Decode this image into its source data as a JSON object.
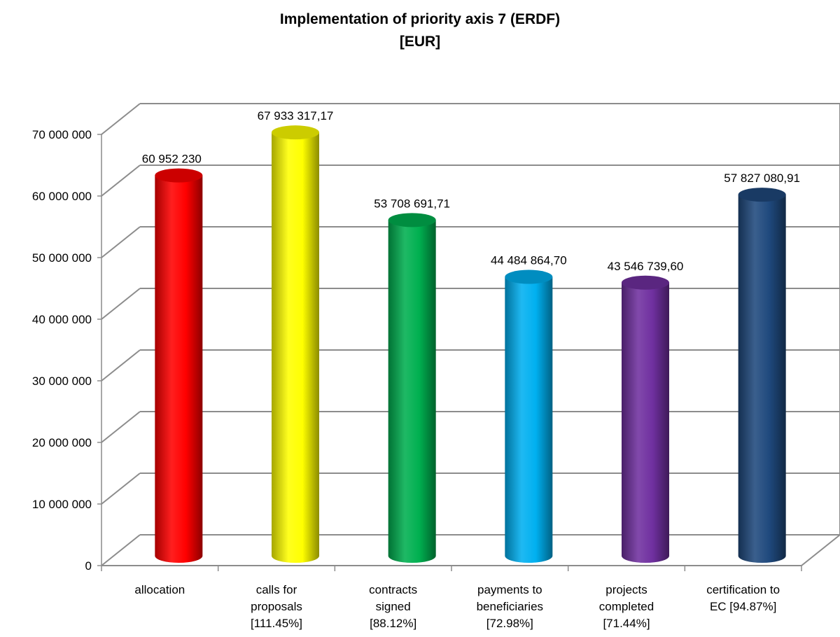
{
  "chart_data": {
    "type": "bar",
    "title_lines": [
      "Implementation of priority axis 7 (ERDF)",
      "[EUR]"
    ],
    "xlabel": "",
    "ylabel": "",
    "ylim": [
      0,
      70000000
    ],
    "yticks": [
      0,
      10000000,
      20000000,
      30000000,
      40000000,
      50000000,
      60000000,
      70000000
    ],
    "ytick_labels": [
      "0",
      "10 000 000",
      "20 000 000",
      "30 000 000",
      "40 000 000",
      "50 000 000",
      "60 000 000",
      "70 000 000"
    ],
    "grid": true,
    "legend": "none",
    "style": "3d-cylinder",
    "categories": [
      [
        "allocation"
      ],
      [
        "calls for",
        "proposals",
        "[111.45%]"
      ],
      [
        "contracts",
        "signed",
        "[88.12%]"
      ],
      [
        "payments to",
        "beneficiaries",
        "[72.98%]"
      ],
      [
        "projects",
        "completed",
        "[71.44%]"
      ],
      [
        "certification to",
        "EC [94.87%]"
      ]
    ],
    "values": [
      60952230,
      67933317.17,
      53708691.71,
      44484864.7,
      43546739.6,
      57827080.91
    ],
    "value_labels": [
      "60 952 230",
      "67 933 317,17",
      "53 708 691,71",
      "44 484 864,70",
      "43 546 739,60",
      "57 827 080,91"
    ],
    "colors": [
      "#ff0000",
      "#ffff00",
      "#00b050",
      "#00b0f0",
      "#7030a0",
      "#1f497d"
    ]
  }
}
